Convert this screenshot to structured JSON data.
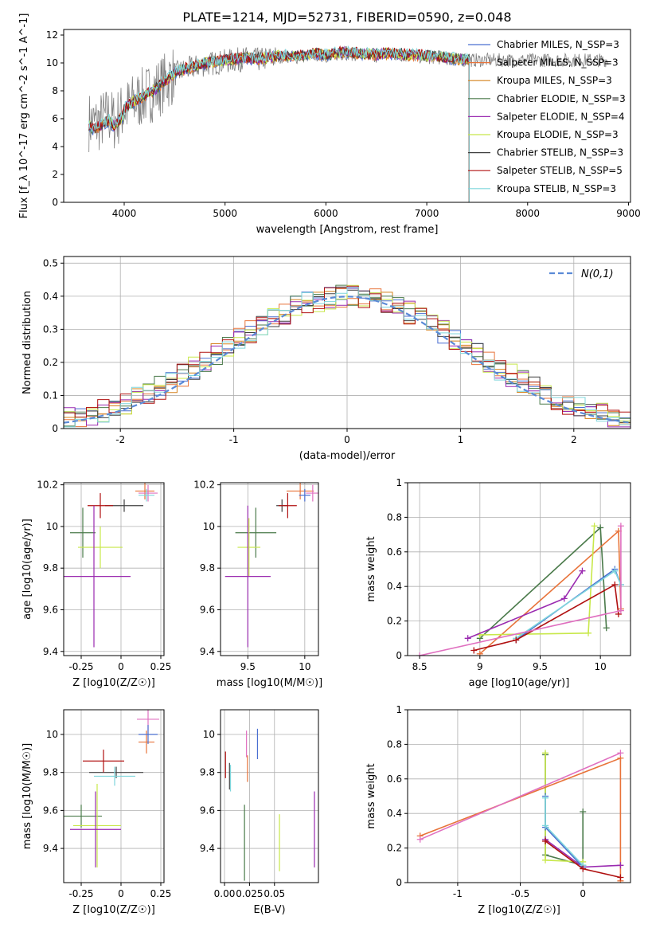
{
  "figure": {
    "title": "PLATE=1214, MJD=52731, FIBERID=0590, z=0.048"
  },
  "chart_data": [
    {
      "id": "spectrum",
      "type": "line",
      "xlabel": "wavelength [Angstrom, rest frame]",
      "ylabel": "Flux [f_λ 10^-17 erg cm^-2 s^-1 A^-1]",
      "xlim": [
        3400,
        9020
      ],
      "ylim": [
        0,
        12.4
      ],
      "xticks": [
        4000,
        5000,
        6000,
        7000,
        8000,
        9000
      ],
      "yticks": [
        0,
        2,
        4,
        6,
        8,
        10,
        12
      ],
      "grid": false,
      "legend_position": "right",
      "legend": [
        {
          "label": "Chabrier MILES, N_SSP=3",
          "color": "#4a6fd1"
        },
        {
          "label": "Salpeter MILES, N_SSP=3",
          "color": "#e8733a"
        },
        {
          "label": "Kroupa MILES, N_SSP=3",
          "color": "#d4801a"
        },
        {
          "label": "Chabrier ELODIE, N_SSP=3",
          "color": "#4a7a4a"
        },
        {
          "label": "Salpeter ELODIE, N_SSP=4",
          "color": "#9a2ab0"
        },
        {
          "label": "Kroupa ELODIE, N_SSP=3",
          "color": "#c8e84a"
        },
        {
          "label": "Chabrier STELIB, N_SSP=3",
          "color": "#404040"
        },
        {
          "label": "Salpeter STELIB, N_SSP=5",
          "color": "#b01010"
        },
        {
          "label": "Kroupa STELIB, N_SSP=3",
          "color": "#7fd6dc"
        }
      ],
      "data_x": [
        3650,
        3700,
        3750,
        3800,
        3850,
        3900,
        3950,
        4000,
        4100,
        4200,
        4300,
        4400,
        4500,
        4600,
        4700,
        4800,
        4900,
        5000,
        5100,
        5200,
        5300,
        5400,
        5500,
        5600,
        5700,
        5800,
        5900,
        6000,
        6100,
        6200,
        6300,
        6400,
        6500,
        6600,
        6700,
        6800,
        6900,
        7000,
        7100,
        7200,
        7300,
        7400
      ],
      "data_y": [
        5.8,
        5.6,
        5.7,
        6.0,
        6.2,
        5.8,
        6.2,
        6.6,
        7.2,
        7.6,
        8.0,
        8.6,
        9.2,
        9.5,
        9.7,
        9.9,
        10.0,
        10.1,
        10.2,
        10.3,
        10.2,
        10.3,
        10.4,
        10.5,
        10.4,
        10.5,
        10.6,
        10.5,
        10.6,
        10.7,
        10.6,
        10.6,
        10.5,
        10.6,
        10.6,
        10.5,
        10.5,
        10.4,
        10.4,
        10.3,
        10.2,
        10.2
      ],
      "model_end_x": 7420,
      "data_end_x": 8800
    },
    {
      "id": "residuals",
      "type": "line",
      "xlabel": "(data-model)/error",
      "ylabel": "Normed distribution",
      "xlim": [
        -2.5,
        2.5
      ],
      "ylim": [
        0,
        0.52
      ],
      "xticks": [
        -2,
        -1,
        0,
        1,
        2
      ],
      "yticks": [
        0.0,
        0.1,
        0.2,
        0.3,
        0.4,
        0.5
      ],
      "grid": true,
      "legend_position": "top-right",
      "legend": [
        {
          "label": "N(0,1)",
          "color": "#5a8ad6",
          "style": "dashed"
        }
      ],
      "normal": {
        "mean": 0,
        "sd": 1
      },
      "hist_bins": [
        -2.5,
        2.5,
        50
      ]
    },
    {
      "id": "age_vs_Z",
      "type": "scatter",
      "xlabel": "Z [log10(Z/Z☉)]",
      "ylabel": "age [log10(age/yr)]",
      "xlim": [
        -0.36,
        0.27
      ],
      "ylim": [
        9.38,
        10.21
      ],
      "xticks": [
        -0.25,
        0.0,
        0.25
      ],
      "yticks": [
        9.4,
        9.6,
        9.8,
        10.0,
        10.2
      ],
      "grid": true,
      "points": [
        {
          "x": 0.02,
          "y": 10.1,
          "ex": 0.12,
          "ey": 0.03,
          "c": "#404040"
        },
        {
          "x": -0.13,
          "y": 10.1,
          "ex": 0.08,
          "ey": 0.06,
          "c": "#b01010"
        },
        {
          "x": -0.24,
          "y": 9.97,
          "ex": 0.08,
          "ey": 0.12,
          "c": "#4a7a4a"
        },
        {
          "x": -0.13,
          "y": 9.9,
          "ex": 0.14,
          "ey": 0.1,
          "c": "#c8e84a"
        },
        {
          "x": -0.17,
          "y": 9.76,
          "ex": 0.23,
          "ey": 0.34,
          "c": "#9a2ab0"
        },
        {
          "x": 0.15,
          "y": 10.17,
          "ex": 0.06,
          "ey": 0.04,
          "c": "#e8733a"
        },
        {
          "x": 0.17,
          "y": 10.16,
          "ex": 0.06,
          "ey": 0.04,
          "c": "#e070c0"
        },
        {
          "x": 0.16,
          "y": 10.15,
          "ex": 0.05,
          "ey": 0.03,
          "c": "#7fd6dc"
        }
      ]
    },
    {
      "id": "age_vs_mass",
      "type": "scatter",
      "xlabel": "mass [log10(M/M☉)]",
      "ylabel": "",
      "xlim": [
        9.26,
        10.12
      ],
      "ylim": [
        9.38,
        10.21
      ],
      "xticks": [
        9.5,
        10.0
      ],
      "yticks": [
        9.4,
        9.6,
        9.8,
        10.0,
        10.2
      ],
      "grid": true,
      "points": [
        {
          "x": 9.8,
          "y": 10.1,
          "ex": 0.05,
          "ey": 0.03,
          "c": "#404040"
        },
        {
          "x": 9.85,
          "y": 10.1,
          "ex": 0.08,
          "ey": 0.06,
          "c": "#b01010"
        },
        {
          "x": 9.57,
          "y": 9.97,
          "ex": 0.18,
          "ey": 0.12,
          "c": "#4a7a4a"
        },
        {
          "x": 9.51,
          "y": 9.9,
          "ex": 0.1,
          "ey": 0.14,
          "c": "#c8e84a"
        },
        {
          "x": 9.5,
          "y": 9.76,
          "ex": 0.2,
          "ey": 0.34,
          "c": "#9a2ab0"
        },
        {
          "x": 9.96,
          "y": 10.17,
          "ex": 0.12,
          "ey": 0.04,
          "c": "#e8733a"
        },
        {
          "x": 10.07,
          "y": 10.16,
          "ex": 0.06,
          "ey": 0.04,
          "c": "#e070c0"
        },
        {
          "x": 10.0,
          "y": 10.15,
          "ex": 0.05,
          "ey": 0.03,
          "c": "#4a6fd1"
        }
      ]
    },
    {
      "id": "weight_vs_age",
      "type": "line",
      "xlabel": "age [log10(age/yr)]",
      "ylabel": "mass weight",
      "xlim": [
        8.4,
        10.25
      ],
      "ylim": [
        0,
        1.0
      ],
      "xticks": [
        8.5,
        9.0,
        9.5,
        10.0
      ],
      "yticks": [
        0.0,
        0.2,
        0.4,
        0.6,
        0.8,
        1.0
      ],
      "grid": true,
      "series": [
        {
          "c": "#4a7a4a",
          "x": [
            9.0,
            10.0,
            10.05
          ],
          "y": [
            0.1,
            0.74,
            0.16
          ]
        },
        {
          "c": "#e8733a",
          "x": [
            9.0,
            10.15,
            10.17
          ],
          "y": [
            0.01,
            0.72,
            0.27
          ]
        },
        {
          "c": "#c8e84a",
          "x": [
            9.0,
            9.9,
            9.95
          ],
          "y": [
            0.12,
            0.13,
            0.75
          ]
        },
        {
          "c": "#9a2ab0",
          "x": [
            8.9,
            9.7,
            9.85
          ],
          "y": [
            0.1,
            0.33,
            0.49
          ]
        },
        {
          "c": "#4a6fd1",
          "x": [
            9.3,
            10.12,
            10.17
          ],
          "y": [
            0.09,
            0.5,
            0.41
          ]
        },
        {
          "c": "#7fd6dc",
          "x": [
            9.3,
            10.12,
            10.17
          ],
          "y": [
            0.1,
            0.49,
            0.41
          ]
        },
        {
          "c": "#b01010",
          "x": [
            8.95,
            9.3,
            10.12,
            10.15
          ],
          "y": [
            0.03,
            0.09,
            0.41,
            0.24
          ]
        },
        {
          "c": "#e070c0",
          "x": [
            8.5,
            10.17,
            10.17
          ],
          "y": [
            0.0,
            0.26,
            0.75
          ]
        }
      ]
    },
    {
      "id": "mass_vs_Z",
      "type": "scatter",
      "xlabel": "Z [log10(Z/Z☉)]",
      "ylabel": "mass [log10(M/M☉)]",
      "xlim": [
        -0.36,
        0.27
      ],
      "ylim": [
        9.22,
        10.13
      ],
      "xticks": [
        -0.25,
        0.0,
        0.25
      ],
      "yticks": [
        9.4,
        9.6,
        9.8,
        10.0
      ],
      "grid": true,
      "points": [
        {
          "x": -0.03,
          "y": 9.8,
          "ex": 0.17,
          "ey": 0.03,
          "c": "#404040"
        },
        {
          "x": -0.11,
          "y": 9.86,
          "ex": 0.13,
          "ey": 0.06,
          "c": "#b01010"
        },
        {
          "x": -0.25,
          "y": 9.57,
          "ex": 0.13,
          "ey": 0.06,
          "c": "#4a7a4a"
        },
        {
          "x": -0.15,
          "y": 9.52,
          "ex": 0.15,
          "ey": 0.22,
          "c": "#c8e84a"
        },
        {
          "x": -0.16,
          "y": 9.5,
          "ex": 0.16,
          "ey": 0.2,
          "c": "#9a2ab0"
        },
        {
          "x": 0.16,
          "y": 9.96,
          "ex": 0.05,
          "ey": 0.06,
          "c": "#e8733a"
        },
        {
          "x": 0.17,
          "y": 10.08,
          "ex": 0.07,
          "ey": 0.06,
          "c": "#e070c0"
        },
        {
          "x": -0.04,
          "y": 9.78,
          "ex": 0.13,
          "ey": 0.05,
          "c": "#7fd6dc"
        },
        {
          "x": 0.17,
          "y": 10.0,
          "ex": 0.06,
          "ey": 0.05,
          "c": "#4a6fd1"
        }
      ]
    },
    {
      "id": "ebv",
      "type": "scatter",
      "xlabel": "E(B-V)",
      "ylabel": "",
      "xlim": [
        -0.004,
        0.094
      ],
      "ylim": [
        9.22,
        10.13
      ],
      "xticks": [
        0.0,
        0.025,
        0.05
      ],
      "xticklabels": [
        "0.00",
        "0.025",
        "0.05"
      ],
      "yticks": [
        9.4,
        9.6,
        9.8,
        10.0
      ],
      "grid": true,
      "points": [
        {
          "x": 0.001,
          "y": 9.84,
          "ex": 0,
          "ey": 0.07,
          "c": "#b01010"
        },
        {
          "x": 0.005,
          "y": 9.78,
          "ex": 0,
          "ey": 0.07,
          "c": "#404040"
        },
        {
          "x": 0.006,
          "y": 9.77,
          "ex": 0,
          "ey": 0.07,
          "c": "#7fd6dc"
        },
        {
          "x": 0.02,
          "y": 9.43,
          "ex": 0,
          "ey": 0.2,
          "c": "#4a7a4a"
        },
        {
          "x": 0.022,
          "y": 9.95,
          "ex": 0,
          "ey": 0.07,
          "c": "#e070c0"
        },
        {
          "x": 0.023,
          "y": 9.82,
          "ex": 0,
          "ey": 0.07,
          "c": "#e8733a"
        },
        {
          "x": 0.033,
          "y": 9.95,
          "ex": 0,
          "ey": 0.08,
          "c": "#4a6fd1"
        },
        {
          "x": 0.055,
          "y": 9.43,
          "ex": 0,
          "ey": 0.15,
          "c": "#c8e84a"
        },
        {
          "x": 0.09,
          "y": 9.5,
          "ex": 0,
          "ey": 0.2,
          "c": "#9a2ab0"
        }
      ]
    },
    {
      "id": "weight_vs_Z",
      "type": "line",
      "xlabel": "Z [log10(Z/Z☉)]",
      "ylabel": "mass weight",
      "xlim": [
        -1.4,
        0.38
      ],
      "ylim": [
        0,
        1.0
      ],
      "xticks": [
        -1.0,
        -0.5,
        0.0
      ],
      "yticks": [
        0.0,
        0.2,
        0.4,
        0.6,
        0.8,
        1.0
      ],
      "grid": true,
      "series": [
        {
          "c": "#4a7a4a",
          "x": [
            -0.3,
            -0.3,
            0.0,
            0.0,
            0.0
          ],
          "y": [
            0.74,
            0.16,
            0.1,
            0.41,
            0.09
          ]
        },
        {
          "c": "#c8e84a",
          "x": [
            -0.3,
            -0.3,
            0.0
          ],
          "y": [
            0.75,
            0.13,
            0.12
          ]
        },
        {
          "c": "#e8733a",
          "x": [
            -1.3,
            0.3,
            0.3
          ],
          "y": [
            0.27,
            0.72,
            0.01
          ]
        },
        {
          "c": "#e070c0",
          "x": [
            -1.3,
            0.3
          ],
          "y": [
            0.25,
            0.75
          ]
        },
        {
          "c": "#9a2ab0",
          "x": [
            -0.3,
            0.0,
            0.3
          ],
          "y": [
            0.25,
            0.09,
            0.1
          ]
        },
        {
          "c": "#4a6fd1",
          "x": [
            -0.3,
            -0.3,
            0.0
          ],
          "y": [
            0.5,
            0.32,
            0.09
          ]
        },
        {
          "c": "#7fd6dc",
          "x": [
            -0.3,
            -0.3,
            0.0
          ],
          "y": [
            0.49,
            0.33,
            0.1
          ]
        },
        {
          "c": "#b01010",
          "x": [
            -0.3,
            0.0,
            0.3
          ],
          "y": [
            0.24,
            0.08,
            0.03
          ]
        }
      ]
    }
  ]
}
